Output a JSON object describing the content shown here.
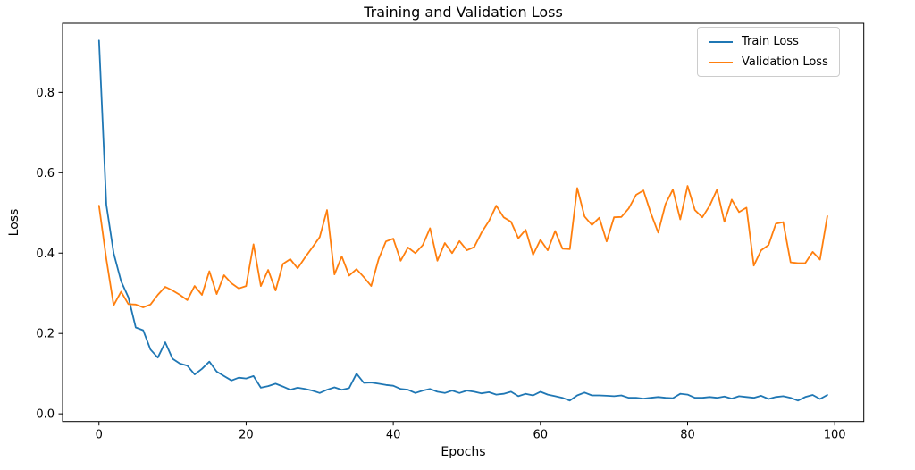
{
  "figure": {
    "title": "Training and Validation Loss",
    "xlabel": "Epochs",
    "ylabel": "Loss"
  },
  "legend": {
    "position": "upper right",
    "items": [
      {
        "label": "Train Loss",
        "color": "#1f77b4"
      },
      {
        "label": "Validation Loss",
        "color": "#ff7f0e"
      }
    ]
  },
  "chart_data": {
    "type": "line",
    "title": "Training and Validation Loss",
    "xlabel": "Epochs",
    "ylabel": "Loss",
    "grid": false,
    "legend_position": "upper right",
    "xlim": [
      -4.95,
      103.95
    ],
    "ylim": [
      -0.019,
      0.972
    ],
    "xticks": [
      0,
      20,
      40,
      60,
      80,
      100
    ],
    "xtick_labels": [
      "0",
      "20",
      "40",
      "60",
      "80",
      "100"
    ],
    "yticks": [
      0.0,
      0.2,
      0.4,
      0.6,
      0.8
    ],
    "ytick_labels": [
      "0.0",
      "0.2",
      "0.4",
      "0.6",
      "0.8"
    ],
    "x": [
      0,
      1,
      2,
      3,
      4,
      5,
      6,
      7,
      8,
      9,
      10,
      11,
      12,
      13,
      14,
      15,
      16,
      17,
      18,
      19,
      20,
      21,
      22,
      23,
      24,
      25,
      26,
      27,
      28,
      29,
      30,
      31,
      32,
      33,
      34,
      35,
      36,
      37,
      38,
      39,
      40,
      41,
      42,
      43,
      44,
      45,
      46,
      47,
      48,
      49,
      50,
      51,
      52,
      53,
      54,
      55,
      56,
      57,
      58,
      59,
      60,
      61,
      62,
      63,
      64,
      65,
      66,
      67,
      68,
      69,
      70,
      71,
      72,
      73,
      74,
      75,
      76,
      77,
      78,
      79,
      80,
      81,
      82,
      83,
      84,
      85,
      86,
      87,
      88,
      89,
      90,
      91,
      92,
      93,
      94,
      95,
      96,
      97,
      98,
      99
    ],
    "series": [
      {
        "name": "Train Loss",
        "color": "#1f77b4",
        "values": [
          0.929,
          0.52,
          0.4,
          0.33,
          0.29,
          0.215,
          0.208,
          0.16,
          0.14,
          0.178,
          0.137,
          0.125,
          0.12,
          0.098,
          0.112,
          0.13,
          0.105,
          0.094,
          0.083,
          0.09,
          0.088,
          0.094,
          0.065,
          0.069,
          0.075,
          0.068,
          0.06,
          0.065,
          0.062,
          0.058,
          0.052,
          0.06,
          0.066,
          0.06,
          0.064,
          0.1,
          0.077,
          0.078,
          0.075,
          0.072,
          0.07,
          0.062,
          0.06,
          0.052,
          0.058,
          0.062,
          0.055,
          0.052,
          0.058,
          0.052,
          0.058,
          0.055,
          0.051,
          0.054,
          0.048,
          0.05,
          0.055,
          0.044,
          0.05,
          0.046,
          0.055,
          0.048,
          0.044,
          0.04,
          0.033,
          0.046,
          0.053,
          0.046,
          0.046,
          0.045,
          0.044,
          0.046,
          0.04,
          0.04,
          0.038,
          0.04,
          0.042,
          0.04,
          0.039,
          0.05,
          0.048,
          0.04,
          0.04,
          0.042,
          0.04,
          0.043,
          0.038,
          0.044,
          0.042,
          0.04,
          0.045,
          0.037,
          0.042,
          0.044,
          0.04,
          0.033,
          0.042,
          0.047,
          0.037,
          0.047
        ]
      },
      {
        "name": "Validation Loss",
        "color": "#ff7f0e",
        "values": [
          0.518,
          0.385,
          0.27,
          0.304,
          0.273,
          0.272,
          0.265,
          0.272,
          0.296,
          0.316,
          0.307,
          0.296,
          0.283,
          0.318,
          0.296,
          0.355,
          0.298,
          0.345,
          0.325,
          0.312,
          0.318,
          0.422,
          0.318,
          0.358,
          0.307,
          0.373,
          0.385,
          0.362,
          0.389,
          0.414,
          0.44,
          0.507,
          0.347,
          0.392,
          0.344,
          0.36,
          0.34,
          0.318,
          0.385,
          0.429,
          0.436,
          0.381,
          0.414,
          0.4,
          0.42,
          0.462,
          0.381,
          0.425,
          0.4,
          0.43,
          0.407,
          0.415,
          0.451,
          0.48,
          0.518,
          0.489,
          0.478,
          0.437,
          0.458,
          0.396,
          0.433,
          0.407,
          0.455,
          0.411,
          0.41,
          0.562,
          0.491,
          0.47,
          0.488,
          0.429,
          0.489,
          0.49,
          0.511,
          0.545,
          0.556,
          0.5,
          0.451,
          0.522,
          0.558,
          0.484,
          0.567,
          0.507,
          0.489,
          0.518,
          0.558,
          0.478,
          0.533,
          0.502,
          0.513,
          0.369,
          0.407,
          0.42,
          0.473,
          0.477,
          0.377,
          0.375,
          0.375,
          0.403,
          0.384,
          0.492
        ]
      }
    ]
  },
  "style": {
    "axis_color": "#000000",
    "background": "#ffffff",
    "legend_border": "#cccccc"
  }
}
